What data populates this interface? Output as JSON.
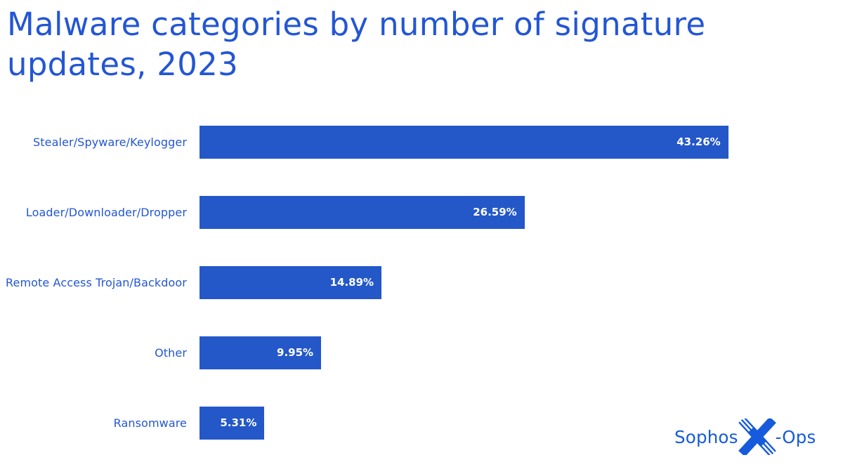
{
  "title": "Malware categories by number of signature updates, 2023",
  "chart_data": {
    "type": "bar",
    "orientation": "horizontal",
    "title": "Malware categories by number of signature updates, 2023",
    "categories": [
      "Stealer/Spyware/Keylogger",
      "Loader/Downloader/Dropper",
      "Remote Access Trojan/Backdoor",
      "Other",
      "Ransomware"
    ],
    "values": [
      43.26,
      26.59,
      14.89,
      9.95,
      5.31
    ],
    "value_labels": [
      "43.26%",
      "26.59%",
      "14.89%",
      "9.95%",
      "5.31%"
    ],
    "unit": "%",
    "xlim": [
      0,
      51.5
    ],
    "grid": false,
    "legend": false,
    "axis_visible": false,
    "value_label_position": "inside-end"
  },
  "colors": {
    "background": "#ffffff",
    "title_text": "#2356d4",
    "category_label_text": "#2356d4",
    "bar_fill": "#2458c8",
    "value_label_text": "#ffffff",
    "logo": "#155bdb"
  },
  "logo": {
    "name": "Sophos X-Ops",
    "sophos_text": "Sophos",
    "ops_text": "-Ops"
  }
}
